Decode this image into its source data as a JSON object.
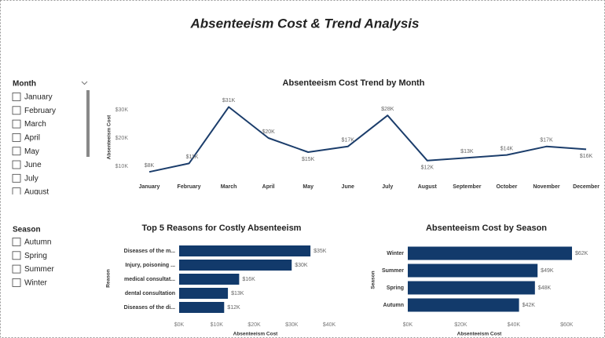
{
  "title": "Absenteeism Cost & Trend Analysis",
  "slicers": [
    {
      "title": "Month",
      "items": [
        "January",
        "February",
        "March",
        "April",
        "May",
        "June",
        "July",
        "August"
      ]
    },
    {
      "title": "Season",
      "items": [
        "Autumn",
        "Spring",
        "Summer",
        "Winter"
      ]
    }
  ],
  "chart_data": [
    {
      "type": "line",
      "title": "Absenteeism Cost Trend by Month",
      "y_label": "Absenteeism Cost",
      "categories": [
        "January",
        "February",
        "March",
        "April",
        "May",
        "June",
        "July",
        "August",
        "September",
        "October",
        "November",
        "December"
      ],
      "values": [
        8000,
        11000,
        31000,
        20000,
        15000,
        17000,
        28000,
        12000,
        13000,
        14000,
        17000,
        16000
      ],
      "value_labels": [
        "$8K",
        "$11K",
        "$31K",
        "$20K",
        "$15K",
        "$17K",
        "$28K",
        "$12K",
        "$13K",
        "$14K",
        "$17K",
        "$16K"
      ],
      "color": "#1b3d6b",
      "ylim": [
        6000,
        33000
      ],
      "yticks": [
        {
          "value": 10000,
          "label": "$10K"
        },
        {
          "value": 20000,
          "label": "$20K"
        },
        {
          "value": 30000,
          "label": "$30K"
        }
      ]
    },
    {
      "type": "bar",
      "horizontal": true,
      "title": "Top 5 Reasons for Costly Absenteeism",
      "x_label": "Absenteeism Cost",
      "y_label": "Reason",
      "categories": [
        "Diseases of the m...",
        "Injury, poisoning ...",
        "medical consultat...",
        "dental consultation",
        "Diseases of the di..."
      ],
      "values": [
        35000,
        30000,
        16000,
        13000,
        12000
      ],
      "value_labels": [
        "$35K",
        "$30K",
        "$16K",
        "$13K",
        "$12K"
      ],
      "color": "#123a6b",
      "xlim": [
        0,
        40000
      ],
      "xticks": [
        {
          "value": 0,
          "label": "$0K"
        },
        {
          "value": 10000,
          "label": "$10K"
        },
        {
          "value": 20000,
          "label": "$20K"
        },
        {
          "value": 30000,
          "label": "$30K"
        },
        {
          "value": 40000,
          "label": "$40K"
        }
      ]
    },
    {
      "type": "bar",
      "horizontal": true,
      "title": "Absenteeism Cost by Season",
      "x_label": "Absenteeism Cost",
      "y_label": "Season",
      "categories": [
        "Winter",
        "Summer",
        "Spring",
        "Autumn"
      ],
      "values": [
        62000,
        49000,
        48000,
        42000
      ],
      "value_labels": [
        "$62K",
        "$49K",
        "$48K",
        "$42K"
      ],
      "color": "#123a6b",
      "xlim": [
        0,
        62000
      ],
      "xticks": [
        {
          "value": 0,
          "label": "$0K"
        },
        {
          "value": 20000,
          "label": "$20K"
        },
        {
          "value": 40000,
          "label": "$40K"
        },
        {
          "value": 60000,
          "label": "$60K"
        }
      ]
    }
  ]
}
